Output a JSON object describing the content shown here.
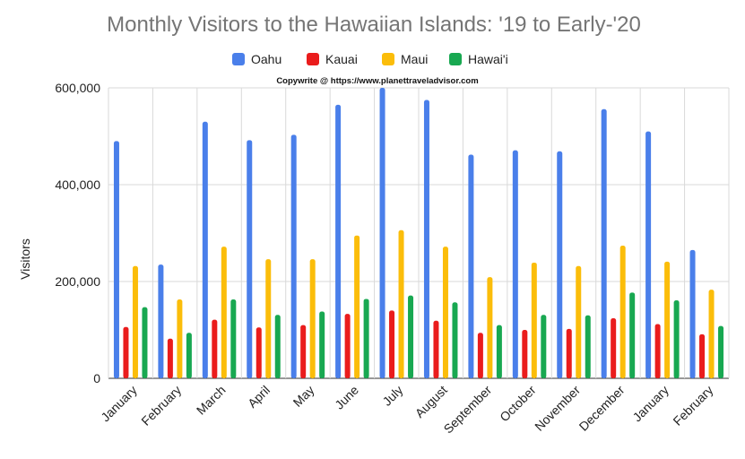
{
  "chart_data": {
    "type": "bar",
    "title": "Monthly Visitors to the Hawaiian Islands: '19 to Early-'20",
    "subtitle": "Copywrite @ https://www.planettraveladvisor.com",
    "xlabel": "",
    "ylabel": "Visitors",
    "ylim": [
      0,
      600000
    ],
    "yticks": [
      0,
      200000,
      400000,
      600000
    ],
    "ytick_labels": [
      "0",
      "200,000",
      "400,000",
      "600,000"
    ],
    "grid": true,
    "legend_position": "top",
    "categories": [
      "January",
      "February",
      "March",
      "April",
      "May",
      "June",
      "July",
      "August",
      "September",
      "October",
      "November",
      "December",
      "January",
      "February"
    ],
    "series": [
      {
        "name": "Oahu",
        "color": "#4a7fea",
        "values": [
          490000,
          235000,
          530000,
          492000,
          503000,
          565000,
          600000,
          575000,
          462000,
          471000,
          469000,
          556000,
          510000,
          265000
        ]
      },
      {
        "name": "Kauai",
        "color": "#ea1c1c",
        "values": [
          106000,
          82000,
          121000,
          105000,
          110000,
          133000,
          140000,
          119000,
          94000,
          100000,
          102000,
          124000,
          112000,
          91000
        ]
      },
      {
        "name": "Maui",
        "color": "#fbbd0a",
        "values": [
          232000,
          163000,
          272000,
          246000,
          246000,
          295000,
          306000,
          272000,
          209000,
          239000,
          232000,
          274000,
          241000,
          183000
        ]
      },
      {
        "name": "Hawai'i",
        "color": "#18a851",
        "values": [
          147000,
          94000,
          163000,
          131000,
          138000,
          164000,
          171000,
          157000,
          110000,
          131000,
          130000,
          177000,
          161000,
          108000
        ]
      }
    ]
  }
}
